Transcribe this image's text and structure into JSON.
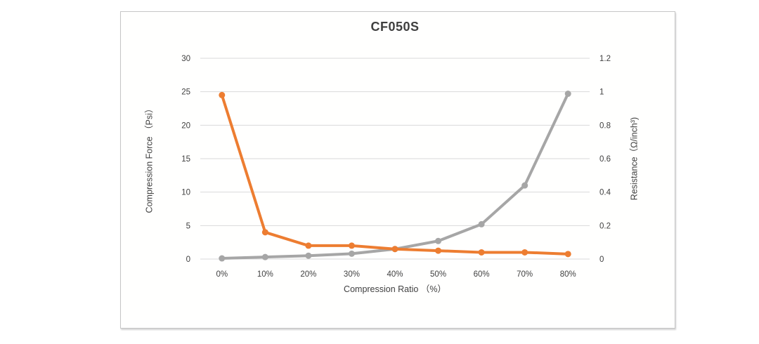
{
  "chart": {
    "title": "CF050S",
    "x_axis": {
      "title": "Compression Ratio （%）"
    },
    "y_left": {
      "title": "Compression Force （Psi）"
    },
    "y_right": {
      "title": "Resistance（Ω/inch³)"
    },
    "colors": {
      "orange_series": "#ed7d31",
      "gray_series": "#a6a6a6",
      "gridline": "#d9d9d9",
      "text": "#404040",
      "panel_border": "#c6c6c6"
    }
  },
  "chart_data": {
    "type": "line",
    "title": "CF050S",
    "categories": [
      "0%",
      "10%",
      "20%",
      "30%",
      "40%",
      "50%",
      "60%",
      "70%",
      "80%"
    ],
    "series": [
      {
        "name": "Compression Force (Psi)",
        "axis": "left",
        "color": "#a6a6a6",
        "marker": "circle",
        "values": [
          0.1,
          0.3,
          0.5,
          0.8,
          1.5,
          2.7,
          5.2,
          11,
          24.7
        ]
      },
      {
        "name": "Resistance (Ω/inch³)",
        "axis": "right",
        "color": "#ed7d31",
        "marker": "circle",
        "values": [
          0.98,
          0.16,
          0.08,
          0.08,
          0.06,
          0.05,
          0.04,
          0.04,
          0.03
        ]
      }
    ],
    "axes": {
      "x": {
        "title": "Compression Ratio （%）"
      },
      "left": {
        "title": "Compression Force （Psi）",
        "min": 0,
        "max": 30,
        "tick_labels": [
          "0",
          "5",
          "10",
          "15",
          "20",
          "25",
          "30"
        ]
      },
      "right": {
        "title": "Resistance（Ω/inch³)",
        "min": 0,
        "max": 1.2,
        "tick_labels": [
          "0",
          "0.2",
          "0.4",
          "0.6",
          "0.8",
          "1",
          "1.2"
        ]
      }
    },
    "grid": true,
    "legend": "none"
  }
}
